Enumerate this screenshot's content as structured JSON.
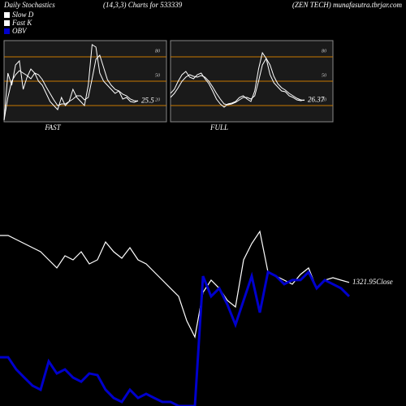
{
  "header": {
    "title": "Daily Stochastics",
    "params": "(14,3,3) Charts for 533339",
    "source": "(ZEN TECH) munafasutra.tbrjar.com"
  },
  "chart_data": [
    {
      "type": "line",
      "title": "FAST",
      "ylim": [
        0,
        100
      ],
      "yticks": [
        20,
        50,
        80
      ],
      "grid": true,
      "series": [
        {
          "name": "Slow D",
          "color": "#ffffff",
          "values": [
            2,
            30,
            50,
            58,
            63,
            60,
            57,
            53,
            60,
            58,
            52,
            43,
            35,
            27,
            20,
            22,
            22,
            25,
            28,
            32,
            32,
            27,
            30,
            53,
            77,
            82,
            67,
            52,
            45,
            40,
            38,
            34,
            32,
            28,
            26,
            25.5
          ]
        },
        {
          "name": "Fast K",
          "color": "#ffffff",
          "values": [
            2,
            60,
            45,
            70,
            75,
            40,
            55,
            65,
            60,
            50,
            45,
            35,
            25,
            20,
            15,
            30,
            20,
            25,
            40,
            30,
            25,
            20,
            45,
            95,
            92,
            60,
            50,
            45,
            40,
            35,
            38,
            28,
            30,
            25,
            24,
            26
          ]
        }
      ],
      "last_label": {
        "value": 25.5,
        "label": "25.5"
      }
    },
    {
      "type": "line",
      "title": "FULL",
      "ylim": [
        0,
        100
      ],
      "yticks": [
        20,
        50,
        80
      ],
      "grid": true,
      "series": [
        {
          "name": "Slow D",
          "color": "#ffffff",
          "values": [
            30,
            35,
            42,
            50,
            55,
            58,
            56,
            55,
            57,
            55,
            50,
            43,
            35,
            28,
            22,
            21,
            22,
            24,
            27,
            30,
            30,
            28,
            32,
            50,
            70,
            78,
            70,
            56,
            47,
            42,
            39,
            35,
            32,
            29,
            27,
            26.37
          ]
        },
        {
          "name": "Fast K",
          "color": "#ffffff",
          "values": [
            35,
            40,
            50,
            58,
            62,
            55,
            53,
            58,
            60,
            53,
            47,
            38,
            28,
            22,
            18,
            22,
            23,
            25,
            30,
            32,
            28,
            25,
            38,
            65,
            85,
            78,
            58,
            48,
            43,
            38,
            37,
            32,
            30,
            27,
            26,
            27
          ]
        }
      ],
      "last_label": {
        "value": 26.37,
        "label": "26.37"
      }
    },
    {
      "type": "line",
      "ylim": [
        976,
        1476
      ],
      "y2lim": [
        0,
        100
      ],
      "series": [
        {
          "name": "Close",
          "color": "#ffffff",
          "values": [
            1453.3,
            1453.3,
            1441.9,
            1430.5,
            1419.2,
            1407.8,
            1385.1,
            1362.4,
            1396.5,
            1385.1,
            1407.8,
            1373.7,
            1385.1,
            1435.1,
            1407.8,
            1389.6,
            1419.2,
            1385.1,
            1373.7,
            1351.0,
            1328.3,
            1305.5,
            1282.8,
            1214.6,
            1169.2,
            1294.2,
            1328.3,
            1305.5,
            1271.5,
            1253.3,
            1385.1,
            1430.5,
            1464.6,
            1351.0,
            1339.6,
            1328.3,
            1316.9,
            1344.2,
            1362.4,
            1305.5,
            1328.3,
            1335.1,
            1328.3,
            1321.95
          ]
        },
        {
          "name": "OBV",
          "color": "#0000cc",
          "axis": "y2",
          "values": [
            27.3,
            27.3,
            20.5,
            15.9,
            11.4,
            9.1,
            25,
            18.2,
            20.5,
            15.9,
            13.6,
            18.2,
            17.3,
            9.1,
            4.5,
            2.3,
            9.1,
            4.5,
            6.8,
            4.5,
            2.3,
            2.3,
            0,
            0,
            0,
            72.7,
            61.4,
            65.9,
            56.8,
            45.5,
            59.1,
            72.7,
            52.3,
            75,
            72.7,
            68.2,
            70.5,
            70.5,
            75,
            65.9,
            70.5,
            68.2,
            65.9,
            61.4
          ]
        }
      ],
      "last_label": {
        "value": 1321.95,
        "label": "1321.95"
      }
    }
  ]
}
